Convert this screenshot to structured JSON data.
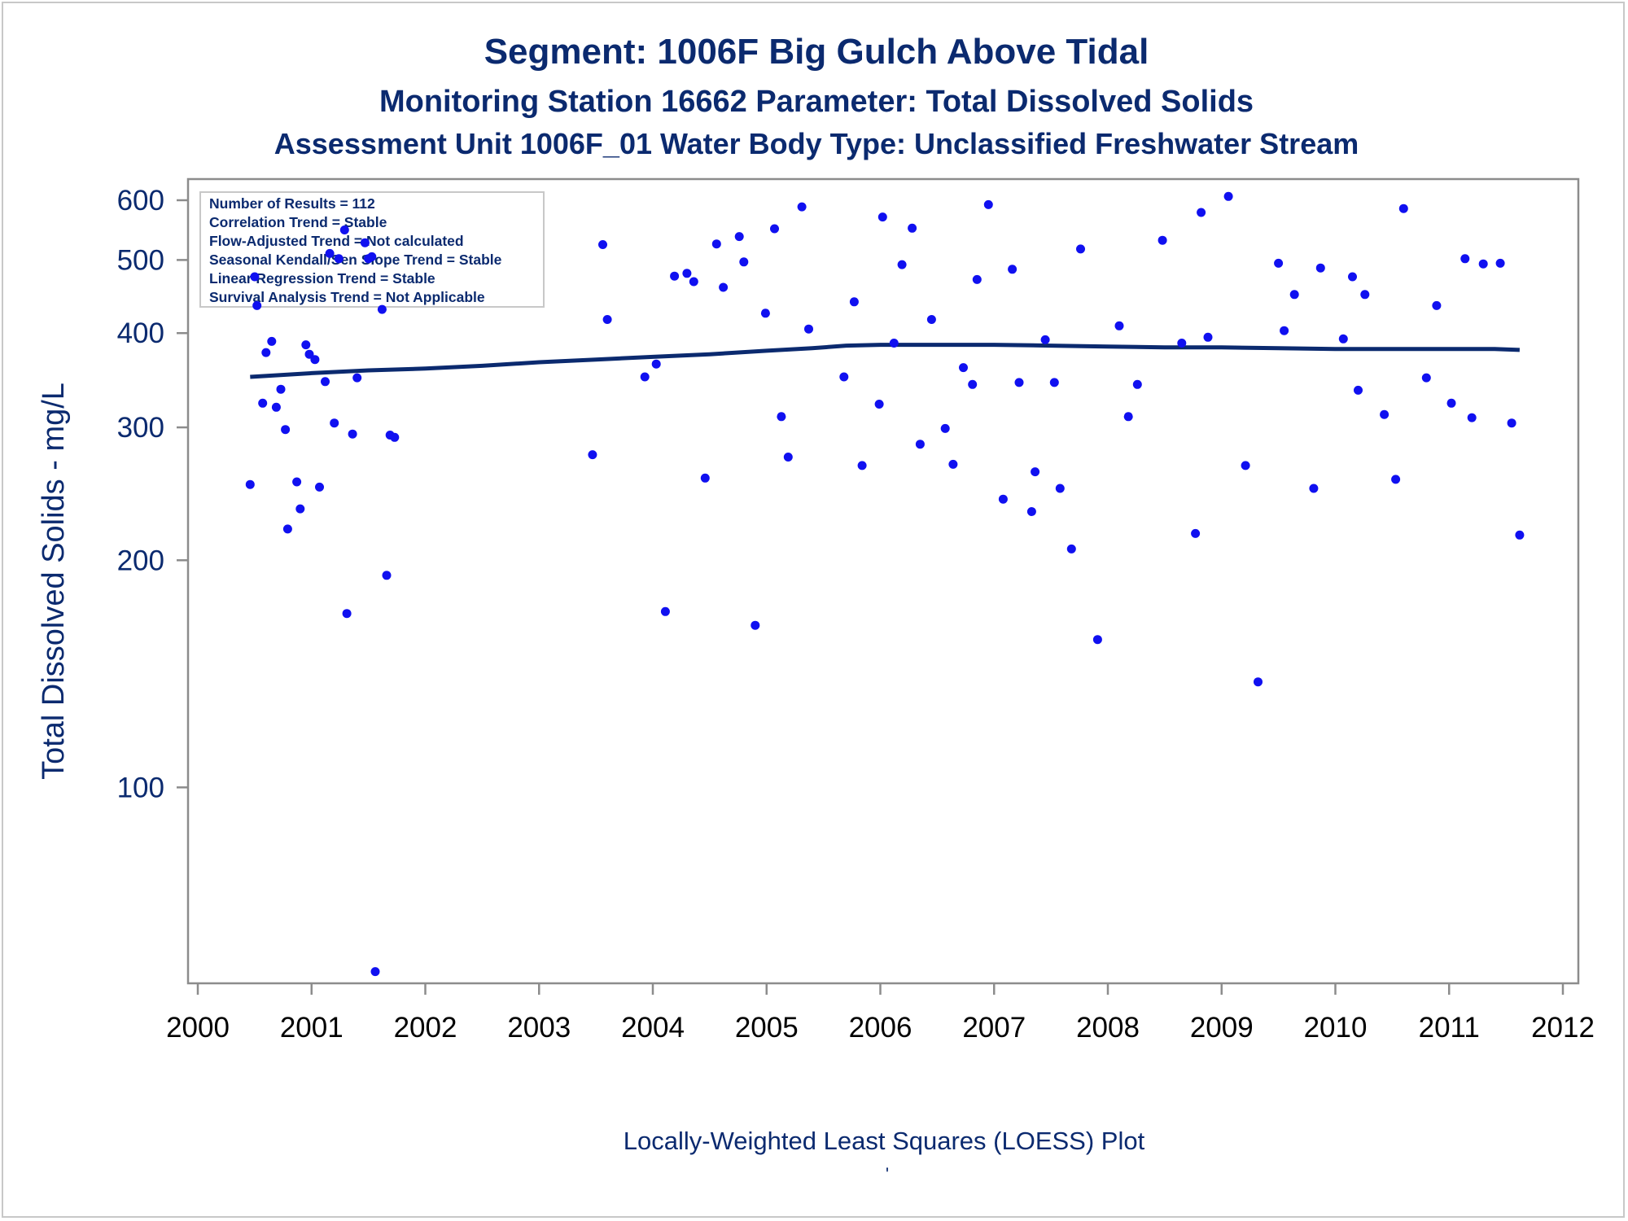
{
  "chart_data": {
    "type": "scatter",
    "title": "Segment: 1006F  Big Gulch Above Tidal",
    "subtitle": "Monitoring Station 16662 Parameter: Total Dissolved Solids",
    "subtitle2": "Assessment Unit 1006F_01   Water Body Type: Unclassified Freshwater Stream",
    "xlabel": "Locally-Weighted Least Squares (LOESS) Plot",
    "footnote": "'",
    "ylabel": "Total Dissolved Solids - mg/L",
    "yscale": "log",
    "xlim": [
      2000,
      2012
    ],
    "ylim": [
      55,
      640
    ],
    "x_ticks": [
      "2000",
      "2001",
      "2002",
      "2003",
      "2004",
      "2005",
      "2006",
      "2007",
      "2008",
      "2009",
      "2010",
      "2011",
      "2012"
    ],
    "y_ticks": [
      "100",
      "200",
      "300",
      "400",
      "500",
      "600"
    ],
    "grid": false,
    "legend_placement": "top-left",
    "stats_box": [
      "Number of Results = 112",
      "Correlation Trend = Stable",
      "Flow-Adjusted Trend = Not calculated",
      "Seasonal Kendall/Sen Slope Trend = Stable",
      "Linear Regression Trend = Stable",
      "Survival Analysis Trend = Not Applicable"
    ],
    "colors": {
      "points": "#1010f0",
      "loess_line": "#0b2a6f",
      "text": "#0b2a6f",
      "axis": "#8c8c8c"
    },
    "points": [
      [
        2000.46,
        252
      ],
      [
        2000.5,
        475
      ],
      [
        2000.52,
        435
      ],
      [
        2000.57,
        323
      ],
      [
        2000.6,
        377
      ],
      [
        2000.65,
        390
      ],
      [
        2000.69,
        319
      ],
      [
        2000.73,
        337
      ],
      [
        2000.77,
        298
      ],
      [
        2000.79,
        220
      ],
      [
        2000.87,
        254
      ],
      [
        2000.9,
        234
      ],
      [
        2000.95,
        386
      ],
      [
        2000.98,
        375
      ],
      [
        2001.03,
        369
      ],
      [
        2001.07,
        250
      ],
      [
        2001.12,
        345
      ],
      [
        2001.16,
        510
      ],
      [
        2001.2,
        304
      ],
      [
        2001.24,
        502
      ],
      [
        2001.29,
        548
      ],
      [
        2001.31,
        170
      ],
      [
        2001.36,
        294
      ],
      [
        2001.4,
        349
      ],
      [
        2001.47,
        527
      ],
      [
        2001.5,
        502
      ],
      [
        2001.53,
        505
      ],
      [
        2001.56,
        57
      ],
      [
        2001.62,
        430
      ],
      [
        2001.66,
        191
      ],
      [
        2001.69,
        293
      ],
      [
        2001.73,
        291
      ],
      [
        2003.47,
        276
      ],
      [
        2003.56,
        524
      ],
      [
        2003.6,
        417
      ],
      [
        2003.93,
        350
      ],
      [
        2004.03,
        364
      ],
      [
        2004.11,
        171
      ],
      [
        2004.19,
        476
      ],
      [
        2004.3,
        480
      ],
      [
        2004.36,
        468
      ],
      [
        2004.46,
        257
      ],
      [
        2004.56,
        525
      ],
      [
        2004.62,
        460
      ],
      [
        2004.76,
        537
      ],
      [
        2004.8,
        497
      ],
      [
        2004.9,
        164
      ],
      [
        2004.99,
        425
      ],
      [
        2005.07,
        550
      ],
      [
        2005.13,
        310
      ],
      [
        2005.19,
        274
      ],
      [
        2005.31,
        588
      ],
      [
        2005.37,
        405
      ],
      [
        2005.68,
        350
      ],
      [
        2005.77,
        440
      ],
      [
        2005.84,
        267
      ],
      [
        2005.99,
        322
      ],
      [
        2006.02,
        570
      ],
      [
        2006.12,
        388
      ],
      [
        2006.19,
        493
      ],
      [
        2006.28,
        551
      ],
      [
        2006.35,
        285
      ],
      [
        2006.45,
        417
      ],
      [
        2006.57,
        299
      ],
      [
        2006.64,
        268
      ],
      [
        2006.73,
        360
      ],
      [
        2006.81,
        342
      ],
      [
        2006.85,
        471
      ],
      [
        2006.95,
        592
      ],
      [
        2007.08,
        241
      ],
      [
        2007.16,
        486
      ],
      [
        2007.22,
        344
      ],
      [
        2007.33,
        232
      ],
      [
        2007.36,
        262
      ],
      [
        2007.45,
        392
      ],
      [
        2007.53,
        344
      ],
      [
        2007.58,
        249
      ],
      [
        2007.68,
        207
      ],
      [
        2007.76,
        517
      ],
      [
        2007.91,
        157
      ],
      [
        2008.1,
        409
      ],
      [
        2008.18,
        310
      ],
      [
        2008.26,
        342
      ],
      [
        2008.48,
        531
      ],
      [
        2008.65,
        388
      ],
      [
        2008.77,
        217
      ],
      [
        2008.82,
        578
      ],
      [
        2008.88,
        395
      ],
      [
        2009.06,
        607
      ],
      [
        2009.21,
        267
      ],
      [
        2009.32,
        138
      ],
      [
        2009.5,
        495
      ],
      [
        2009.55,
        403
      ],
      [
        2009.64,
        450
      ],
      [
        2009.81,
        249
      ],
      [
        2009.87,
        488
      ],
      [
        2010.07,
        393
      ],
      [
        2010.15,
        475
      ],
      [
        2010.2,
        336
      ],
      [
        2010.26,
        450
      ],
      [
        2010.43,
        312
      ],
      [
        2010.53,
        256
      ],
      [
        2010.6,
        585
      ],
      [
        2010.8,
        349
      ],
      [
        2010.89,
        435
      ],
      [
        2011.02,
        323
      ],
      [
        2011.14,
        502
      ],
      [
        2011.2,
        309
      ],
      [
        2011.3,
        494
      ],
      [
        2011.45,
        495
      ],
      [
        2011.55,
        304
      ],
      [
        2011.62,
        216
      ]
    ],
    "loess": [
      [
        2000.46,
        350
      ],
      [
        2001.0,
        354
      ],
      [
        2001.5,
        357
      ],
      [
        2002.0,
        359
      ],
      [
        2002.5,
        362
      ],
      [
        2003.0,
        366
      ],
      [
        2003.5,
        369
      ],
      [
        2004.0,
        372
      ],
      [
        2004.5,
        375
      ],
      [
        2005.0,
        379
      ],
      [
        2005.4,
        382
      ],
      [
        2005.7,
        385
      ],
      [
        2006.0,
        386
      ],
      [
        2006.5,
        386
      ],
      [
        2007.0,
        386
      ],
      [
        2007.5,
        385
      ],
      [
        2008.0,
        384
      ],
      [
        2008.5,
        383
      ],
      [
        2009.0,
        383
      ],
      [
        2009.5,
        382
      ],
      [
        2010.0,
        381
      ],
      [
        2010.5,
        381
      ],
      [
        2011.0,
        381
      ],
      [
        2011.4,
        381
      ],
      [
        2011.62,
        380
      ]
    ]
  }
}
